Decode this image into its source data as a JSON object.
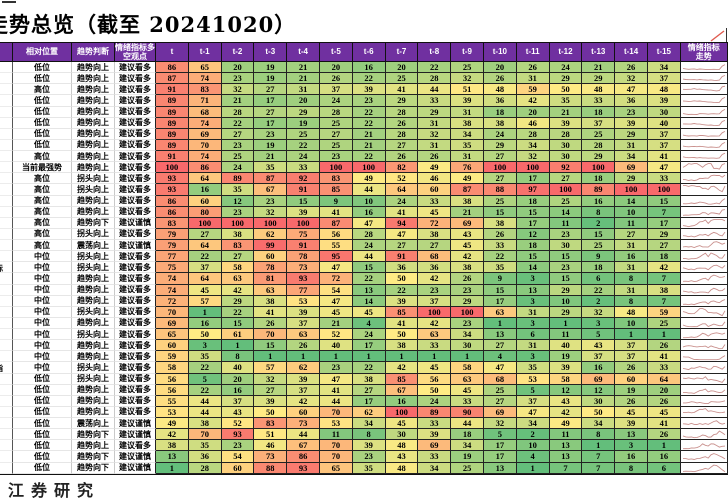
{
  "title": "走势总览（截至 20241020）",
  "footer_watermark": "江券研究",
  "colors": {
    "header_bg": "#7030A0",
    "header_text": "#ffffff",
    "scale_min_green": "#63BE7B",
    "scale_mid_yellow": "#FFEB84",
    "scale_max_red": "#F8696B",
    "sparkline": "#c9908d",
    "fragment_red": "#e05a4e"
  },
  "chart_data": {
    "type": "heatmap",
    "title": "走势总览（截至 20241020）",
    "columns": [
      "相对位置",
      "趋势判断",
      "情绪指标多空观点",
      "t",
      "t-1",
      "t-2",
      "t-3",
      "t-4",
      "t-5",
      "t-6",
      "t-7",
      "t-8",
      "t-9",
      "t-10",
      "t-11",
      "t-12",
      "t-13",
      "t-14",
      "t-15",
      "情绪指标走势"
    ],
    "value_range": [
      1,
      100
    ],
    "color_scale": {
      "min_value": 1,
      "min_color": "#63BE7B",
      "mid_value": 50,
      "mid_color": "#FFEB84",
      "max_value": 100,
      "max_color": "#F8696B"
    },
    "sparkline_note": "每行右侧迷你走势图为该行 t-15 至 t 情绪指标值的折线",
    "left_fragments": [
      {
        "row": 19,
        "text": "标"
      },
      {
        "row": 28,
        "text": "指"
      }
    ],
    "rows": [
      {
        "position": "低位",
        "trend": "趋势向上",
        "view": "建议看多",
        "values": [
          86,
          65,
          20,
          19,
          21,
          20,
          16,
          20,
          22,
          25,
          20,
          26,
          24,
          21,
          26,
          34
        ]
      },
      {
        "position": "低位",
        "trend": "趋势向上",
        "view": "建议看多",
        "values": [
          87,
          74,
          23,
          19,
          21,
          26,
          22,
          25,
          28,
          32,
          26,
          31,
          29,
          29,
          32,
          37
        ]
      },
      {
        "position": "高位",
        "trend": "趋势向上",
        "view": "建议看多",
        "values": [
          91,
          83,
          32,
          27,
          31,
          37,
          39,
          41,
          44,
          51,
          48,
          59,
          50,
          48,
          47,
          48
        ]
      },
      {
        "position": "低位",
        "trend": "趋势向上",
        "view": "建议看多",
        "values": [
          89,
          71,
          21,
          17,
          20,
          24,
          23,
          29,
          33,
          39,
          36,
          42,
          35,
          33,
          36,
          39
        ]
      },
      {
        "position": "低位",
        "trend": "趋势向上",
        "view": "建议看多",
        "values": [
          89,
          68,
          28,
          27,
          29,
          28,
          22,
          28,
          29,
          31,
          18,
          20,
          21,
          18,
          23,
          30
        ]
      },
      {
        "position": "低位",
        "trend": "趋势向上",
        "view": "建议看多",
        "values": [
          89,
          74,
          22,
          17,
          19,
          25,
          22,
          26,
          31,
          38,
          38,
          46,
          39,
          37,
          39,
          40
        ]
      },
      {
        "position": "低位",
        "trend": "趋势向上",
        "view": "建议看多",
        "values": [
          89,
          69,
          27,
          23,
          25,
          27,
          21,
          28,
          32,
          34,
          24,
          28,
          28,
          25,
          29,
          37
        ]
      },
      {
        "position": "低位",
        "trend": "趋势向上",
        "view": "建议看多",
        "values": [
          89,
          70,
          23,
          19,
          22,
          25,
          21,
          27,
          31,
          35,
          29,
          34,
          30,
          28,
          31,
          37
        ]
      },
      {
        "position": "高位",
        "trend": "趋势向上",
        "view": "建议看多",
        "values": [
          91,
          74,
          25,
          21,
          24,
          23,
          22,
          26,
          26,
          31,
          27,
          32,
          30,
          29,
          34,
          41
        ]
      },
      {
        "position": "当前最强势",
        "trend": "趋势向上",
        "view": "建议看多",
        "values": [
          100,
          86,
          24,
          35,
          33,
          100,
          100,
          82,
          49,
          76,
          100,
          100,
          92,
          100,
          69,
          47
        ]
      },
      {
        "position": "高位",
        "trend": "拐头向上",
        "view": "建议看多",
        "values": [
          93,
          64,
          89,
          87,
          92,
          83,
          49,
          52,
          46,
          49,
          27,
          17,
          27,
          18,
          29,
          33
        ]
      },
      {
        "position": "高位",
        "trend": "拐头向上",
        "view": "建议看多",
        "values": [
          93,
          16,
          35,
          67,
          91,
          85,
          44,
          64,
          60,
          87,
          88,
          97,
          100,
          89,
          100,
          100
        ]
      },
      {
        "position": "高位",
        "trend": "趋势向上",
        "view": "建议看多",
        "values": [
          86,
          60,
          12,
          23,
          15,
          9,
          10,
          24,
          33,
          38,
          25,
          18,
          25,
          16,
          14,
          15
        ]
      },
      {
        "position": "高位",
        "trend": "趋势向上",
        "view": "建议看多",
        "values": [
          86,
          80,
          23,
          32,
          39,
          41,
          16,
          41,
          45,
          21,
          15,
          15,
          14,
          8,
          10,
          7
        ]
      },
      {
        "position": "高位",
        "trend": "趋势向下",
        "view": "建议谨慎",
        "values": [
          83,
          100,
          100,
          100,
          100,
          87,
          47,
          94,
          72,
          69,
          38,
          17,
          11,
          2,
          11,
          17
        ]
      },
      {
        "position": "高位",
        "trend": "拐头向上",
        "view": "建议看多",
        "values": [
          79,
          27,
          38,
          62,
          75,
          56,
          28,
          47,
          38,
          43,
          26,
          12,
          23,
          15,
          27,
          29
        ]
      },
      {
        "position": "高位",
        "trend": "震荡向上",
        "view": "建议谨慎",
        "values": [
          79,
          64,
          83,
          99,
          91,
          55,
          24,
          27,
          27,
          45,
          33,
          18,
          30,
          25,
          31,
          27
        ]
      },
      {
        "position": "中位",
        "trend": "拐头向上",
        "view": "建议看多",
        "values": [
          77,
          22,
          27,
          60,
          78,
          95,
          44,
          91,
          68,
          42,
          22,
          15,
          15,
          9,
          16,
          18
        ]
      },
      {
        "position": "中位",
        "trend": "拐头向上",
        "view": "建议看多",
        "values": [
          75,
          37,
          58,
          78,
          73,
          47,
          15,
          36,
          36,
          38,
          35,
          14,
          23,
          18,
          31,
          42
        ]
      },
      {
        "position": "中位",
        "trend": "趋势向上",
        "view": "建议看多",
        "values": [
          74,
          64,
          63,
          81,
          93,
          72,
          22,
          50,
          42,
          26,
          9,
          3,
          15,
          6,
          8,
          7
        ]
      },
      {
        "position": "中位",
        "trend": "趋势向上",
        "view": "建议看多",
        "values": [
          74,
          45,
          42,
          63,
          77,
          54,
          13,
          22,
          23,
          23,
          15,
          13,
          29,
          22,
          31,
          38
        ]
      },
      {
        "position": "中位",
        "trend": "趋势向上",
        "view": "建议看多",
        "values": [
          72,
          57,
          29,
          38,
          53,
          47,
          14,
          39,
          37,
          29,
          17,
          3,
          10,
          2,
          8,
          7
        ]
      },
      {
        "position": "中位",
        "trend": "拐头向上",
        "view": "建议看多",
        "values": [
          70,
          1,
          22,
          41,
          39,
          45,
          45,
          85,
          100,
          100,
          63,
          31,
          29,
          32,
          48,
          59
        ]
      },
      {
        "position": "中位",
        "trend": "趋势向上",
        "view": "建议看多",
        "values": [
          69,
          16,
          15,
          26,
          37,
          21,
          4,
          41,
          42,
          23,
          1,
          3,
          1,
          3,
          10,
          25
        ]
      },
      {
        "position": "中位",
        "trend": "拐头向上",
        "view": "建议看多",
        "values": [
          65,
          50,
          61,
          70,
          63,
          52,
          24,
          50,
          63,
          34,
          13,
          6,
          11,
          5,
          1,
          1
        ]
      },
      {
        "position": "中位",
        "trend": "趋势向上",
        "view": "建议看多",
        "values": [
          60,
          3,
          1,
          15,
          26,
          40,
          17,
          38,
          33,
          30,
          27,
          31,
          40,
          43,
          37,
          26
        ]
      },
      {
        "position": "中位",
        "trend": "趋势向上",
        "view": "建议看多",
        "values": [
          59,
          35,
          8,
          1,
          1,
          1,
          1,
          1,
          1,
          1,
          4,
          3,
          19,
          37,
          37,
          41
        ]
      },
      {
        "position": "中位",
        "trend": "拐头向上",
        "view": "建议看多",
        "values": [
          58,
          22,
          40,
          57,
          62,
          23,
          22,
          42,
          45,
          58,
          47,
          35,
          39,
          16,
          26,
          33
        ]
      },
      {
        "position": "低位",
        "trend": "拐头向上",
        "view": "建议看多",
        "values": [
          56,
          5,
          20,
          32,
          39,
          47,
          38,
          85,
          56,
          63,
          68,
          53,
          58,
          69,
          60,
          64
        ]
      },
      {
        "position": "低位",
        "trend": "趋势向上",
        "view": "建议看多",
        "values": [
          56,
          22,
          16,
          27,
          37,
          41,
          27,
          67,
          50,
          45,
          25,
          5,
          12,
          12,
          19,
          20
        ]
      },
      {
        "position": "低位",
        "trend": "趋势向上",
        "view": "建议看多",
        "values": [
          55,
          44,
          37,
          39,
          42,
          44,
          17,
          16,
          24,
          33,
          27,
          37,
          43,
          30,
          26,
          26
        ]
      },
      {
        "position": "低位",
        "trend": "趋势向上",
        "view": "建议看多",
        "values": [
          53,
          44,
          43,
          50,
          60,
          70,
          62,
          100,
          89,
          90,
          69,
          47,
          42,
          50,
          45,
          45
        ]
      },
      {
        "position": "低位",
        "trend": "震荡向上",
        "view": "建议谨慎",
        "values": [
          49,
          38,
          52,
          83,
          73,
          53,
          34,
          45,
          33,
          44,
          32,
          34,
          49,
          34,
          39,
          41
        ]
      },
      {
        "position": "低位",
        "trend": "趋势向下",
        "view": "建议谨慎",
        "values": [
          42,
          70,
          93,
          51,
          44,
          11,
          8,
          30,
          39,
          18,
          5,
          2,
          11,
          8,
          13,
          26
        ]
      },
      {
        "position": "低位",
        "trend": "趋势向上",
        "view": "建议看多",
        "values": [
          38,
          35,
          23,
          46,
          67,
          70,
          39,
          48,
          69,
          34,
          17,
          10,
          13,
          1,
          3,
          1
        ]
      },
      {
        "position": "低位",
        "trend": "趋势向下",
        "view": "建议谨慎",
        "values": [
          13,
          36,
          54,
          73,
          86,
          70,
          23,
          43,
          33,
          19,
          17,
          4,
          13,
          7,
          16,
          16
        ]
      },
      {
        "position": "低位",
        "trend": "趋势向下",
        "view": "建议谨慎",
        "values": [
          1,
          28,
          60,
          88,
          93,
          65,
          35,
          48,
          34,
          25,
          13,
          1,
          7,
          7,
          8,
          6
        ]
      }
    ]
  }
}
